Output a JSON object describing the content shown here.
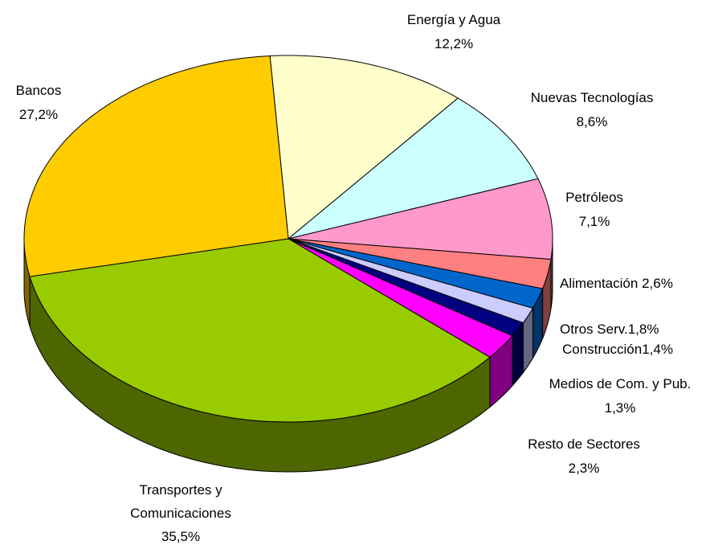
{
  "chart_data": {
    "type": "pie3d",
    "categories": [
      "Energía y Agua",
      "Nuevas Tecnologías",
      "Petróleos",
      "Alimentación",
      "Otros Serv.",
      "Construcción",
      "Medios de Com. y Pub.",
      "Resto de Sectores",
      "Transportes y Comunicaciones",
      "Bancos"
    ],
    "values": [
      12.2,
      8.6,
      7.1,
      2.6,
      1.8,
      1.4,
      1.3,
      2.3,
      35.5,
      27.2
    ],
    "value_labels": [
      "12,2%",
      "8,6%",
      "7,1%",
      "2,6%",
      "1,8%",
      "1,4%",
      "1,3%",
      "2,3%",
      "35,5%",
      "27,2%"
    ],
    "colors": [
      "#ffffcc",
      "#ccffff",
      "#ff99cc",
      "#ff8080",
      "#0066cc",
      "#ccccff",
      "#000080",
      "#ff00ff",
      "#99cc00",
      "#ffcc00"
    ]
  }
}
